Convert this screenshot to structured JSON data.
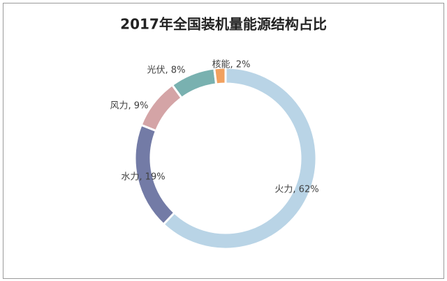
{
  "chart_data": {
    "type": "donut",
    "title": "2017年全国装机量能源结构占比",
    "values": [
      62,
      19,
      9,
      8,
      2
    ],
    "value_labels": [
      "火力, 62%",
      "水力, 19%",
      "风力, 9%",
      "光伏, 8%",
      "核能, 2%"
    ],
    "colors": [
      "#b9d4e6",
      "#737ba6",
      "#d4a4a6",
      "#79b1b0",
      "#f2a15f"
    ]
  }
}
